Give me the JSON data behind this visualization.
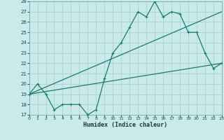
{
  "title": "",
  "xlabel": "Humidex (Indice chaleur)",
  "ylabel": "",
  "bg_color": "#c8eaea",
  "line_color": "#1a7a6e",
  "grid_color": "#a8cccc",
  "xlim": [
    0,
    23
  ],
  "ylim": [
    17,
    28
  ],
  "yticks": [
    17,
    18,
    19,
    20,
    21,
    22,
    23,
    24,
    25,
    26,
    27,
    28
  ],
  "xticks": [
    0,
    1,
    2,
    3,
    4,
    5,
    6,
    7,
    8,
    9,
    10,
    11,
    12,
    13,
    14,
    15,
    16,
    17,
    18,
    19,
    20,
    21,
    22,
    23
  ],
  "series1_x": [
    0,
    1,
    2,
    3,
    4,
    5,
    6,
    7,
    8,
    9,
    10,
    11,
    12,
    13,
    14,
    15,
    16,
    17,
    18,
    19,
    20,
    21,
    22,
    23
  ],
  "series1_y": [
    19,
    20,
    19,
    17.5,
    18,
    18,
    18,
    17,
    17.5,
    20.5,
    23,
    24,
    25.5,
    27,
    26.5,
    28,
    26.5,
    27,
    26.8,
    25,
    25,
    23,
    21.5,
    22
  ],
  "series2_x": [
    0,
    23
  ],
  "series2_y": [
    19,
    22
  ],
  "series3_x": [
    0,
    23
  ],
  "series3_y": [
    19,
    27
  ]
}
